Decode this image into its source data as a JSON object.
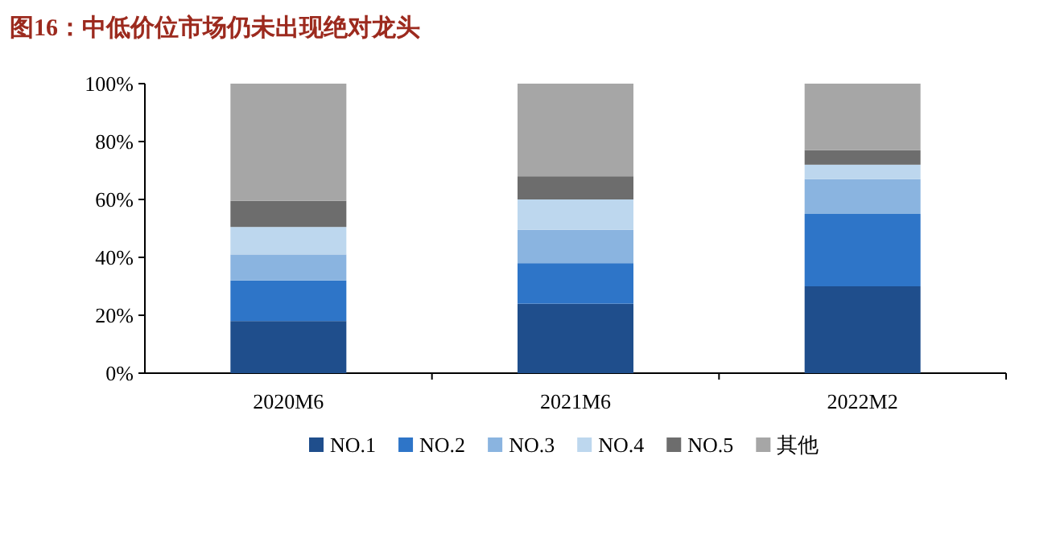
{
  "chart_data": {
    "type": "bar",
    "stacked": true,
    "title": "图16：中低价位市场仍未出现绝对龙头",
    "categories": [
      "2020M6",
      "2021M6",
      "2022M2"
    ],
    "series": [
      {
        "name": "NO.1",
        "color": "#1f4e8c",
        "values": [
          18,
          24,
          30
        ]
      },
      {
        "name": "NO.2",
        "color": "#2e75c8",
        "values": [
          14,
          14,
          25
        ]
      },
      {
        "name": "NO.3",
        "color": "#8ab4e0",
        "values": [
          9,
          11.5,
          12
        ]
      },
      {
        "name": "NO.4",
        "color": "#bdd7ee",
        "values": [
          9.5,
          10.5,
          5
        ]
      },
      {
        "name": "NO.5",
        "color": "#6d6d6d",
        "values": [
          9,
          8,
          5
        ]
      },
      {
        "name": "其他",
        "color": "#a6a6a6",
        "values": [
          40.5,
          32,
          23
        ]
      }
    ],
    "ylim": [
      0,
      100
    ],
    "yticks": [
      {
        "value": 0,
        "label": "0%"
      },
      {
        "value": 20,
        "label": "20%"
      },
      {
        "value": 40,
        "label": "40%"
      },
      {
        "value": 60,
        "label": "60%"
      },
      {
        "value": 80,
        "label": "80%"
      },
      {
        "value": 100,
        "label": "100%"
      }
    ],
    "grid": false,
    "legend": "bottom"
  }
}
